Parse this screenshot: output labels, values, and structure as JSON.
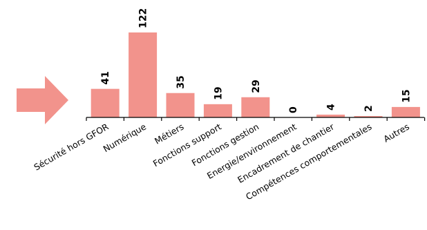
{
  "chart_data": {
    "type": "bar",
    "categories": [
      "Sécurité hors GFOR",
      "Numérique",
      "Métiers",
      "Fonctions support",
      "Fonctions gestion",
      "Energie/environnement",
      "Encadrement de chantier",
      "Compétences comportementales",
      "Autres"
    ],
    "values": [
      41,
      122,
      35,
      19,
      29,
      0,
      4,
      2,
      15
    ],
    "ylim": [
      0,
      122
    ],
    "grid": false,
    "legend": "none",
    "bar_color": "#f2938c",
    "arrow_color": "#f2938c",
    "axis_color": "#000000"
  }
}
